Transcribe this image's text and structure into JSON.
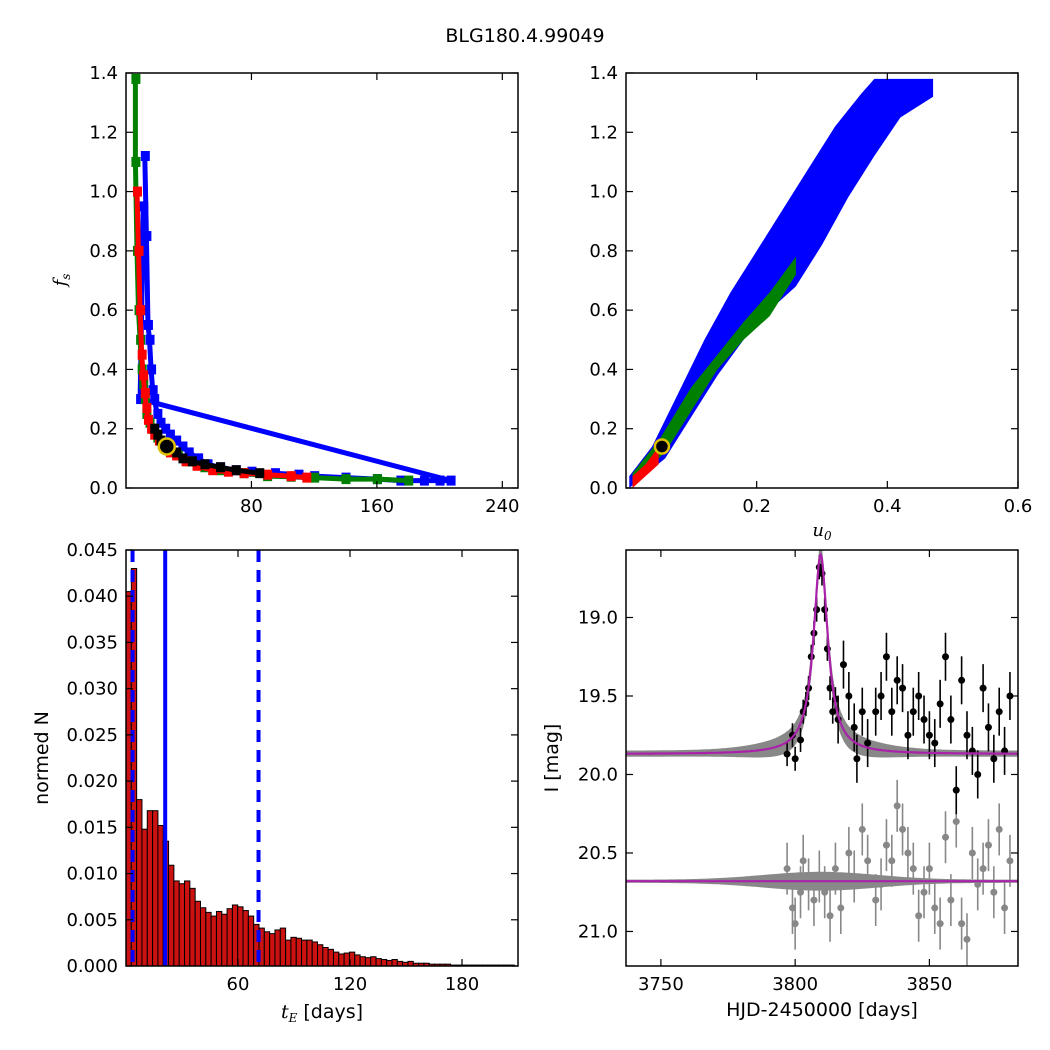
{
  "figure_title": "BLG180.4.99049",
  "chart_data": [
    {
      "type": "scatter",
      "panel": "top-left",
      "xlabel": "",
      "ylabel": "f_s",
      "xlim": [
        0,
        250
      ],
      "ylim": [
        0,
        1.4
      ],
      "xticks": [
        "80",
        "160",
        "240"
      ],
      "xtick_values": [
        80,
        160,
        240
      ],
      "yticks": [
        "0.0",
        "0.2",
        "0.4",
        "0.6",
        "0.8",
        "1.0",
        "1.2",
        "1.4"
      ],
      "ytick_values": [
        0,
        0.2,
        0.4,
        0.6,
        0.8,
        1.0,
        1.2,
        1.4
      ],
      "series": [
        {
          "color": "#0000ff",
          "points": [
            [
              12,
              1.12
            ],
            [
              13,
              0.85
            ],
            [
              14,
              0.55
            ],
            [
              15,
              0.5
            ],
            [
              16,
              0.4
            ],
            [
              17,
              0.33
            ],
            [
              18,
              0.3
            ],
            [
              20,
              0.25
            ],
            [
              22,
              0.22
            ],
            [
              25,
              0.2
            ],
            [
              28,
              0.18
            ],
            [
              32,
              0.16
            ],
            [
              36,
              0.14
            ],
            [
              40,
              0.12
            ],
            [
              46,
              0.1
            ],
            [
              52,
              0.08
            ],
            [
              60,
              0.07
            ],
            [
              70,
              0.06
            ],
            [
              80,
              0.055
            ],
            [
              95,
              0.05
            ],
            [
              110,
              0.045
            ],
            [
              120,
              0.04
            ],
            [
              140,
              0.035
            ],
            [
              160,
              0.03
            ],
            [
              175,
              0.025
            ],
            [
              190,
              0.025
            ],
            [
              200,
              0.025
            ],
            [
              207,
              0.025
            ],
            [
              9,
              0.3
            ],
            [
              10,
              0.6
            ],
            [
              11,
              0.95
            ]
          ]
        },
        {
          "color": "#008000",
          "points": [
            [
              6,
              1.38
            ],
            [
              6,
              1.1
            ],
            [
              7,
              0.8
            ],
            [
              8,
              0.6
            ],
            [
              9,
              0.5
            ],
            [
              10,
              0.4
            ],
            [
              11,
              0.35
            ],
            [
              12,
              0.3
            ],
            [
              13,
              0.25
            ],
            [
              15,
              0.22
            ],
            [
              17,
              0.2
            ],
            [
              20,
              0.17
            ],
            [
              24,
              0.15
            ],
            [
              28,
              0.13
            ],
            [
              33,
              0.11
            ],
            [
              40,
              0.09
            ],
            [
              50,
              0.07
            ],
            [
              60,
              0.06
            ],
            [
              75,
              0.05
            ],
            [
              90,
              0.04
            ],
            [
              105,
              0.038
            ],
            [
              120,
              0.035
            ],
            [
              140,
              0.03
            ],
            [
              160,
              0.03
            ],
            [
              180,
              0.025
            ]
          ]
        },
        {
          "color": "#ff0000",
          "points": [
            [
              7,
              1.0
            ],
            [
              8,
              0.8
            ],
            [
              9,
              0.6
            ],
            [
              10,
              0.45
            ],
            [
              11,
              0.38
            ],
            [
              12,
              0.32
            ],
            [
              13,
              0.27
            ],
            [
              14,
              0.23
            ],
            [
              16,
              0.2
            ],
            [
              18,
              0.18
            ],
            [
              21,
              0.16
            ],
            [
              24,
              0.14
            ],
            [
              28,
              0.12
            ],
            [
              32,
              0.11
            ],
            [
              38,
              0.09
            ],
            [
              45,
              0.075
            ],
            [
              55,
              0.06
            ],
            [
              65,
              0.055
            ],
            [
              75,
              0.05
            ],
            [
              90,
              0.045
            ],
            [
              105,
              0.04
            ],
            [
              115,
              0.035
            ]
          ]
        },
        {
          "color": "#000000",
          "points": [
            [
              18,
              0.2
            ],
            [
              20,
              0.18
            ],
            [
              22,
              0.16
            ],
            [
              25,
              0.15
            ],
            [
              28,
              0.13
            ],
            [
              32,
              0.12
            ],
            [
              36,
              0.1
            ],
            [
              42,
              0.09
            ],
            [
              50,
              0.08
            ],
            [
              60,
              0.07
            ],
            [
              70,
              0.06
            ],
            [
              85,
              0.05
            ]
          ]
        }
      ],
      "best_fit_marker": [
        26,
        0.14
      ]
    },
    {
      "type": "scatter",
      "panel": "top-right",
      "xlabel": "u_0",
      "ylabel": "",
      "xlim": [
        0,
        0.6
      ],
      "ylim": [
        0,
        1.4
      ],
      "xticks": [
        "0.2",
        "0.4",
        "0.6"
      ],
      "xtick_values": [
        0.2,
        0.4,
        0.6
      ],
      "yticks": [
        "0.0",
        "0.2",
        "0.4",
        "0.6",
        "0.8",
        "1.0",
        "1.2",
        "1.4"
      ],
      "ytick_values": [
        0,
        0.2,
        0.4,
        0.6,
        0.8,
        1.0,
        1.2,
        1.4
      ],
      "band_blue": {
        "color": "#0000ff",
        "lower": [
          [
            0.005,
            0.0
          ],
          [
            0.06,
            0.1
          ],
          [
            0.1,
            0.24
          ],
          [
            0.14,
            0.38
          ],
          [
            0.18,
            0.5
          ],
          [
            0.22,
            0.6
          ],
          [
            0.26,
            0.68
          ],
          [
            0.3,
            0.82
          ],
          [
            0.34,
            0.98
          ],
          [
            0.38,
            1.12
          ],
          [
            0.42,
            1.25
          ],
          [
            0.47,
            1.32
          ]
        ],
        "upper": [
          [
            0.005,
            0.04
          ],
          [
            0.04,
            0.14
          ],
          [
            0.08,
            0.32
          ],
          [
            0.12,
            0.5
          ],
          [
            0.16,
            0.66
          ],
          [
            0.2,
            0.8
          ],
          [
            0.24,
            0.94
          ],
          [
            0.28,
            1.08
          ],
          [
            0.32,
            1.22
          ],
          [
            0.36,
            1.33
          ],
          [
            0.38,
            1.38
          ],
          [
            0.47,
            1.38
          ]
        ]
      },
      "band_green": {
        "color": "#008000",
        "lower": [
          [
            0.01,
            0.02
          ],
          [
            0.06,
            0.12
          ],
          [
            0.1,
            0.26
          ],
          [
            0.14,
            0.4
          ],
          [
            0.18,
            0.5
          ],
          [
            0.22,
            0.58
          ],
          [
            0.26,
            0.72
          ]
        ],
        "upper": [
          [
            0.01,
            0.05
          ],
          [
            0.05,
            0.16
          ],
          [
            0.1,
            0.34
          ],
          [
            0.14,
            0.45
          ],
          [
            0.18,
            0.56
          ],
          [
            0.22,
            0.66
          ],
          [
            0.26,
            0.78
          ]
        ]
      },
      "band_red": {
        "color": "#ff0000",
        "lower": [
          [
            0.01,
            0.0
          ],
          [
            0.03,
            0.04
          ],
          [
            0.05,
            0.08
          ]
        ],
        "upper": [
          [
            0.01,
            0.04
          ],
          [
            0.03,
            0.08
          ],
          [
            0.05,
            0.14
          ]
        ]
      },
      "best_fit_marker": [
        0.055,
        0.14
      ]
    },
    {
      "type": "bar",
      "panel": "bottom-left",
      "xlabel": "t_E [days]",
      "ylabel": "normed N",
      "xlim": [
        0,
        210
      ],
      "ylim": [
        0,
        0.045
      ],
      "xticks": [
        "60",
        "120",
        "180"
      ],
      "xtick_values": [
        60,
        120,
        180
      ],
      "yticks": [
        "0.000",
        "0.005",
        "0.010",
        "0.015",
        "0.020",
        "0.025",
        "0.030",
        "0.035",
        "0.040",
        "0.045"
      ],
      "ytick_values": [
        0,
        0.005,
        0.01,
        0.015,
        0.02,
        0.025,
        0.03,
        0.035,
        0.04,
        0.045
      ],
      "bin_width": 2.85,
      "values": [
        0.0405,
        0.043,
        0.018,
        0.0148,
        0.0168,
        0.0168,
        0.0152,
        0.0135,
        0.0109,
        0.0092,
        0.0089,
        0.0092,
        0.0084,
        0.007,
        0.0063,
        0.0058,
        0.0054,
        0.0059,
        0.0056,
        0.0062,
        0.0066,
        0.0064,
        0.006,
        0.0054,
        0.0045,
        0.0041,
        0.0037,
        0.0035,
        0.0039,
        0.0041,
        0.0028,
        0.0031,
        0.003,
        0.0028,
        0.0028,
        0.0026,
        0.0023,
        0.002,
        0.0018,
        0.0015,
        0.0013,
        0.0014,
        0.0015,
        0.0012,
        0.001,
        0.0009,
        0.001,
        0.0008,
        0.0007,
        0.0006,
        0.0007,
        0.0005,
        0.0004,
        0.0005,
        0.0003,
        0.0003,
        0.0003,
        0.0002,
        0.0002,
        0.0002,
        0.0002,
        0.0001,
        0.0001,
        0.0001,
        0.0001,
        0.0001,
        0.0001,
        0.0001,
        0.0001,
        0.0001,
        0.0001,
        0.0001,
        0.0001
      ],
      "bar_color": "#cc1111",
      "vlines": [
        {
          "x": 21,
          "style": "solid",
          "color": "#0000ff"
        },
        {
          "x": 3.5,
          "style": "dashed",
          "color": "#0000ff"
        },
        {
          "x": 71,
          "style": "dashed",
          "color": "#0000ff"
        }
      ]
    },
    {
      "type": "line",
      "panel": "bottom-right",
      "xlabel": "HJD-2450000 [days]",
      "ylabel": "I [mag]",
      "xlim": [
        3737,
        3883
      ],
      "ylim": [
        21.22,
        18.57
      ],
      "xticks": [
        "3750",
        "3800",
        "3850"
      ],
      "xtick_values": [
        3750,
        3800,
        3850
      ],
      "yticks": [
        "19.0",
        "19.5",
        "20.0",
        "20.5",
        "21.0"
      ],
      "ytick_values": [
        19.0,
        19.5,
        20.0,
        20.5,
        21.0
      ],
      "model": {
        "t0": 3809.5,
        "tE": 3.2,
        "base": 19.87,
        "peak": 18.6,
        "color": "#aa22aa"
      },
      "residual_baseline": 20.68,
      "data_points": [
        [
          3797,
          19.87
        ],
        [
          3799,
          19.75
        ],
        [
          3800,
          19.9
        ],
        [
          3802,
          19.78
        ],
        [
          3803,
          19.6
        ],
        [
          3804,
          19.55
        ],
        [
          3805,
          19.45
        ],
        [
          3806,
          19.25
        ],
        [
          3807,
          19.1
        ],
        [
          3808,
          18.95
        ],
        [
          3809,
          18.68
        ],
        [
          3810,
          18.72
        ],
        [
          3811,
          18.95
        ],
        [
          3812,
          19.2
        ],
        [
          3813,
          19.45
        ],
        [
          3814,
          19.6
        ],
        [
          3815,
          19.52
        ],
        [
          3816,
          19.65
        ],
        [
          3818,
          19.3
        ],
        [
          3820,
          19.5
        ],
        [
          3822,
          19.7
        ],
        [
          3823,
          19.9
        ],
        [
          3825,
          19.6
        ],
        [
          3827,
          19.8
        ],
        [
          3830,
          19.6
        ],
        [
          3832,
          19.5
        ],
        [
          3834,
          19.25
        ],
        [
          3836,
          19.6
        ],
        [
          3838,
          19.4
        ],
        [
          3840,
          19.45
        ],
        [
          3842,
          19.75
        ],
        [
          3844,
          19.6
        ],
        [
          3846,
          19.5
        ],
        [
          3848,
          19.65
        ],
        [
          3850,
          19.75
        ],
        [
          3852,
          19.8
        ],
        [
          3854,
          19.55
        ],
        [
          3856,
          19.25
        ],
        [
          3858,
          19.65
        ],
        [
          3860,
          20.1
        ],
        [
          3862,
          19.4
        ],
        [
          3864,
          19.75
        ],
        [
          3866,
          19.85
        ],
        [
          3868,
          20.0
        ],
        [
          3870,
          19.45
        ],
        [
          3872,
          19.7
        ],
        [
          3874,
          19.9
        ],
        [
          3876,
          19.6
        ],
        [
          3878,
          19.85
        ],
        [
          3880,
          19.5
        ]
      ],
      "residual_points": [
        [
          3797,
          20.6
        ],
        [
          3799,
          20.85
        ],
        [
          3800,
          20.95
        ],
        [
          3802,
          20.75
        ],
        [
          3803,
          20.55
        ],
        [
          3805,
          20.7
        ],
        [
          3807,
          20.8
        ],
        [
          3809,
          20.65
        ],
        [
          3811,
          20.75
        ],
        [
          3813,
          20.9
        ],
        [
          3815,
          20.6
        ],
        [
          3817,
          20.85
        ],
        [
          3820,
          20.5
        ],
        [
          3822,
          20.65
        ],
        [
          3825,
          20.35
        ],
        [
          3827,
          20.55
        ],
        [
          3830,
          20.8
        ],
        [
          3832,
          20.7
        ],
        [
          3834,
          20.45
        ],
        [
          3836,
          20.55
        ],
        [
          3838,
          20.2
        ],
        [
          3840,
          20.35
        ],
        [
          3842,
          20.5
        ],
        [
          3844,
          20.6
        ],
        [
          3846,
          20.9
        ],
        [
          3848,
          20.75
        ],
        [
          3850,
          20.6
        ],
        [
          3852,
          20.85
        ],
        [
          3854,
          20.95
        ],
        [
          3856,
          20.4
        ],
        [
          3858,
          20.8
        ],
        [
          3860,
          20.3
        ],
        [
          3862,
          20.95
        ],
        [
          3864,
          21.05
        ],
        [
          3866,
          20.5
        ],
        [
          3868,
          20.7
        ],
        [
          3870,
          20.6
        ],
        [
          3872,
          20.45
        ],
        [
          3874,
          20.75
        ],
        [
          3876,
          20.35
        ],
        [
          3878,
          20.85
        ],
        [
          3880,
          20.55
        ]
      ]
    }
  ]
}
